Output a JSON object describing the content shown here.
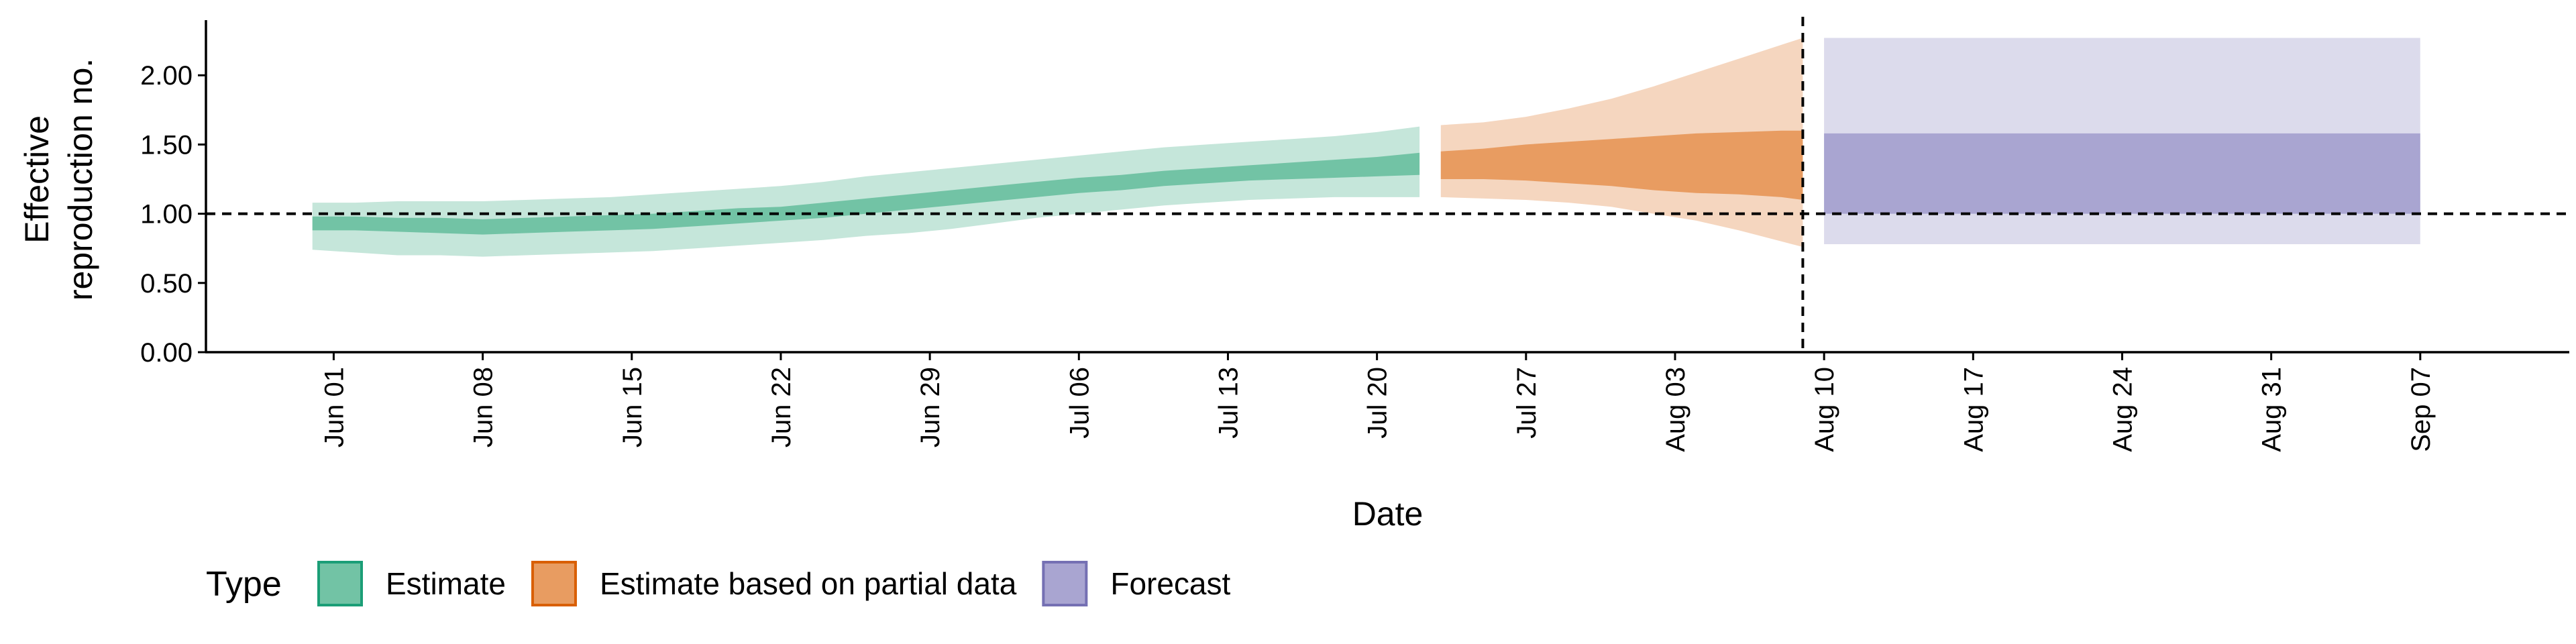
{
  "chart_data": {
    "type": "area",
    "xlabel": "Date",
    "ylabel_lines": [
      "Effective",
      "reproduction no."
    ],
    "ylim": [
      0,
      2.35
    ],
    "y_ticks": [
      0,
      0.5,
      1.0,
      1.5,
      2.0
    ],
    "y_tick_labels": [
      "0.00",
      "0.50",
      "1.00",
      "1.50",
      "2.00"
    ],
    "x_range": [
      "2020-05-26",
      "2020-09-14"
    ],
    "x_ticks": [
      {
        "date": "2020-06-01",
        "label": "Jun 01"
      },
      {
        "date": "2020-06-08",
        "label": "Jun 08"
      },
      {
        "date": "2020-06-15",
        "label": "Jun 15"
      },
      {
        "date": "2020-06-22",
        "label": "Jun 22"
      },
      {
        "date": "2020-06-29",
        "label": "Jun 29"
      },
      {
        "date": "2020-07-06",
        "label": "Jul 06"
      },
      {
        "date": "2020-07-13",
        "label": "Jul 13"
      },
      {
        "date": "2020-07-20",
        "label": "Jul 20"
      },
      {
        "date": "2020-07-27",
        "label": "Jul 27"
      },
      {
        "date": "2020-08-03",
        "label": "Aug 03"
      },
      {
        "date": "2020-08-10",
        "label": "Aug 10"
      },
      {
        "date": "2020-08-17",
        "label": "Aug 17"
      },
      {
        "date": "2020-08-24",
        "label": "Aug 24"
      },
      {
        "date": "2020-08-31",
        "label": "Aug 31"
      },
      {
        "date": "2020-09-07",
        "label": "Sep 07"
      }
    ],
    "hline": 1.0,
    "vline": "2020-08-09",
    "legend": {
      "title": "Type",
      "position": "bottom",
      "entries": [
        {
          "label": "Estimate",
          "fill": "#72c3a5",
          "border": "#1b9e77"
        },
        {
          "label": "Estimate based on partial data",
          "fill": "#e89c61",
          "border": "#d95f02"
        },
        {
          "label": "Forecast",
          "fill": "#a9a5d1",
          "border": "#7570b3"
        }
      ]
    },
    "series": [
      {
        "name": "Estimate",
        "inner_fill": "#72c3a5",
        "outer_fill": "#c5e6da",
        "x": [
          "2020-05-31",
          "2020-06-02",
          "2020-06-04",
          "2020-06-06",
          "2020-06-08",
          "2020-06-10",
          "2020-06-12",
          "2020-06-14",
          "2020-06-16",
          "2020-06-18",
          "2020-06-20",
          "2020-06-22",
          "2020-06-24",
          "2020-06-26",
          "2020-06-28",
          "2020-06-30",
          "2020-07-02",
          "2020-07-04",
          "2020-07-06",
          "2020-07-08",
          "2020-07-10",
          "2020-07-12",
          "2020-07-14",
          "2020-07-16",
          "2020-07-18",
          "2020-07-20",
          "2020-07-22"
        ],
        "lower_90": [
          0.74,
          0.72,
          0.7,
          0.7,
          0.69,
          0.7,
          0.71,
          0.72,
          0.73,
          0.75,
          0.77,
          0.79,
          0.81,
          0.84,
          0.86,
          0.89,
          0.93,
          0.97,
          1.0,
          1.03,
          1.06,
          1.08,
          1.1,
          1.11,
          1.12,
          1.12,
          1.12
        ],
        "upper_90": [
          1.08,
          1.08,
          1.09,
          1.09,
          1.09,
          1.1,
          1.11,
          1.12,
          1.14,
          1.16,
          1.18,
          1.2,
          1.23,
          1.27,
          1.3,
          1.33,
          1.36,
          1.39,
          1.42,
          1.45,
          1.48,
          1.5,
          1.52,
          1.54,
          1.56,
          1.59,
          1.63
        ],
        "lower_50": [
          0.88,
          0.88,
          0.87,
          0.86,
          0.85,
          0.86,
          0.87,
          0.88,
          0.89,
          0.91,
          0.93,
          0.95,
          0.97,
          1.0,
          1.03,
          1.06,
          1.09,
          1.12,
          1.15,
          1.17,
          1.2,
          1.22,
          1.24,
          1.25,
          1.26,
          1.27,
          1.28
        ],
        "upper_50": [
          0.98,
          0.98,
          0.97,
          0.97,
          0.96,
          0.97,
          0.98,
          0.99,
          1.0,
          1.02,
          1.04,
          1.05,
          1.08,
          1.11,
          1.14,
          1.17,
          1.2,
          1.23,
          1.26,
          1.28,
          1.31,
          1.33,
          1.35,
          1.37,
          1.39,
          1.41,
          1.44
        ]
      },
      {
        "name": "Estimate based on partial data",
        "inner_fill": "#e89c61",
        "outer_fill": "#f5d6bf",
        "x": [
          "2020-07-23",
          "2020-07-25",
          "2020-07-27",
          "2020-07-29",
          "2020-07-31",
          "2020-08-02",
          "2020-08-04",
          "2020-08-06",
          "2020-08-08",
          "2020-08-09"
        ],
        "lower_90": [
          1.12,
          1.11,
          1.1,
          1.08,
          1.05,
          1.0,
          0.95,
          0.88,
          0.8,
          0.76
        ],
        "upper_90": [
          1.64,
          1.66,
          1.7,
          1.76,
          1.83,
          1.92,
          2.02,
          2.12,
          2.22,
          2.27
        ],
        "lower_50": [
          1.25,
          1.25,
          1.24,
          1.22,
          1.2,
          1.17,
          1.15,
          1.14,
          1.12,
          1.1
        ],
        "upper_50": [
          1.45,
          1.47,
          1.5,
          1.52,
          1.54,
          1.56,
          1.58,
          1.59,
          1.6,
          1.6
        ]
      },
      {
        "name": "Forecast",
        "inner_fill": "#a9a5d1",
        "outer_fill": "#dcdbec",
        "x": [
          "2020-08-10",
          "2020-09-07"
        ],
        "lower_90": [
          0.78,
          0.78
        ],
        "upper_90": [
          2.27,
          2.27
        ],
        "lower_50": [
          1.0,
          1.0
        ],
        "upper_50": [
          1.58,
          1.58
        ]
      }
    ]
  }
}
